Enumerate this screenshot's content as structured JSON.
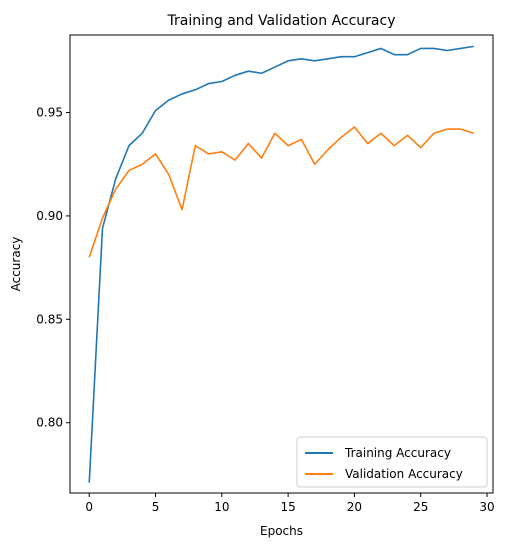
{
  "chart_data": {
    "type": "line",
    "title": "Training and Validation Accuracy",
    "xlabel": "Epochs",
    "ylabel": "Accuracy",
    "xlim": [
      -1.45,
      30.45
    ],
    "ylim": [
      0.766,
      0.9875
    ],
    "xticks": [
      0,
      5,
      10,
      15,
      20,
      25,
      30
    ],
    "yticks": [
      0.8,
      0.85,
      0.9,
      0.95
    ],
    "grid": false,
    "legend_position": "lower-right",
    "x": [
      0,
      1,
      2,
      3,
      4,
      5,
      6,
      7,
      8,
      9,
      10,
      11,
      12,
      13,
      14,
      15,
      16,
      17,
      18,
      19,
      20,
      21,
      22,
      23,
      24,
      25,
      26,
      27,
      28,
      29
    ],
    "series": [
      {
        "name": "Training Accuracy",
        "color": "#1f77b4",
        "values": [
          0.771,
          0.894,
          0.918,
          0.934,
          0.94,
          0.951,
          0.956,
          0.959,
          0.961,
          0.964,
          0.965,
          0.968,
          0.97,
          0.969,
          0.972,
          0.975,
          0.976,
          0.975,
          0.976,
          0.977,
          0.977,
          0.979,
          0.981,
          0.978,
          0.978,
          0.981,
          0.981,
          0.98,
          0.981,
          0.982
        ]
      },
      {
        "name": "Validation Accuracy",
        "color": "#ff7f0e",
        "values": [
          0.88,
          0.899,
          0.913,
          0.922,
          0.925,
          0.93,
          0.92,
          0.903,
          0.934,
          0.93,
          0.931,
          0.927,
          0.935,
          0.928,
          0.94,
          0.934,
          0.937,
          0.925,
          0.932,
          0.938,
          0.943,
          0.935,
          0.94,
          0.934,
          0.939,
          0.933,
          0.94,
          0.942,
          0.942,
          0.94
        ]
      }
    ]
  }
}
